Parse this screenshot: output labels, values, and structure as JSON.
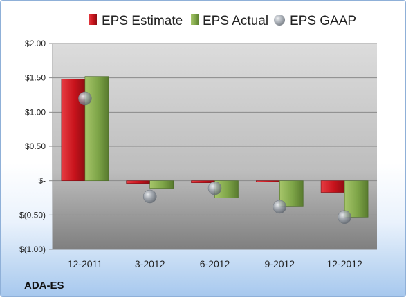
{
  "chart_data": {
    "type": "bar",
    "categories": [
      "12-2011",
      "3-2012",
      "6-2012",
      "9-2012",
      "12-2012"
    ],
    "series": [
      {
        "name": "EPS Estimate",
        "values": [
          1.48,
          -0.04,
          -0.03,
          -0.02,
          -0.17
        ]
      },
      {
        "name": "EPS Actual",
        "values": [
          1.52,
          -0.11,
          -0.25,
          -0.37,
          -0.53
        ]
      },
      {
        "name": "EPS GAAP",
        "values": [
          1.2,
          -0.23,
          -0.11,
          -0.38,
          -0.53
        ]
      }
    ],
    "ylim": [
      -1.0,
      2.0
    ],
    "yticks": [
      2.0,
      1.5,
      1.0,
      0.5,
      0,
      -0.5,
      -1.0
    ],
    "ytick_labels": [
      "$2.00",
      "$1.50",
      "$1.00",
      "$0.50",
      "$-",
      "$(0.50)",
      "$(1.00)"
    ],
    "legend_position": "top",
    "grid": true,
    "ticker": "ADA-ES",
    "colors": {
      "estimate": "#c0121b",
      "actual": "#76a33c",
      "gaap": "#9aa0a8"
    }
  }
}
